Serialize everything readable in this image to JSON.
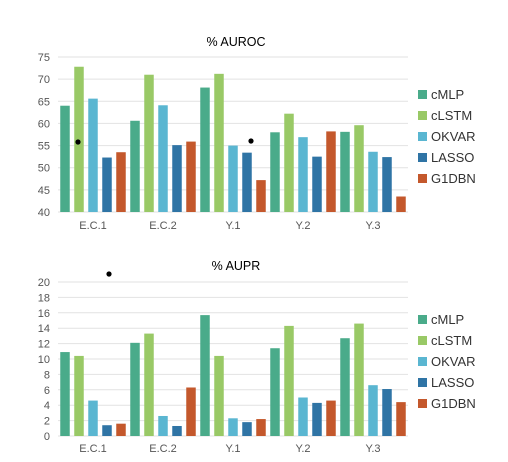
{
  "colors": {
    "cMLP": "#4aab8a",
    "cLSTM": "#99c966",
    "OKVAR": "#5ab6d1",
    "LASSO": "#2f74a5",
    "G1DBN": "#c4582c",
    "grid": "#e2e2e2",
    "text": "#555555"
  },
  "chart_data": [
    {
      "type": "bar",
      "title": "% AUROC",
      "categories": [
        "E.C.1",
        "E.C.2",
        "Y.1",
        "Y.2",
        "Y.3"
      ],
      "ylim": [
        40,
        75
      ],
      "yticks": [
        "40",
        "45",
        "50",
        "55",
        "60",
        "65",
        "70",
        "75"
      ],
      "grid": true,
      "legend_position": "right",
      "series": [
        {
          "name": "cMLP",
          "values": [
            64.0,
            60.6,
            68.1,
            58.0,
            58.1
          ]
        },
        {
          "name": "cLSTM",
          "values": [
            72.8,
            71.0,
            71.2,
            62.2,
            59.6
          ]
        },
        {
          "name": "OKVAR",
          "values": [
            65.6,
            64.1,
            55.0,
            56.9,
            53.6
          ]
        },
        {
          "name": "LASSO",
          "values": [
            52.3,
            55.1,
            53.4,
            52.5,
            52.4
          ]
        },
        {
          "name": "G1DBN",
          "values": [
            53.5,
            55.9,
            47.2,
            58.2,
            43.5
          ]
        }
      ]
    },
    {
      "type": "bar",
      "title": "% AUPR",
      "categories": [
        "E.C.1",
        "E.C.2",
        "Y.1",
        "Y.2",
        "Y.3"
      ],
      "ylim": [
        0,
        20
      ],
      "yticks": [
        "0",
        "2",
        "4",
        "6",
        "8",
        "10",
        "12",
        "14",
        "16",
        "18",
        "20"
      ],
      "grid": true,
      "legend_position": "right",
      "series": [
        {
          "name": "cMLP",
          "values": [
            10.9,
            12.1,
            15.7,
            11.4,
            12.7
          ]
        },
        {
          "name": "cLSTM",
          "values": [
            10.4,
            13.3,
            10.4,
            14.3,
            14.6
          ]
        },
        {
          "name": "OKVAR",
          "values": [
            4.6,
            2.6,
            2.3,
            5.0,
            6.6
          ]
        },
        {
          "name": "LASSO",
          "values": [
            1.4,
            1.3,
            1.8,
            4.3,
            6.1
          ]
        },
        {
          "name": "G1DBN",
          "values": [
            1.6,
            6.3,
            2.2,
            4.6,
            4.4
          ]
        }
      ]
    }
  ]
}
